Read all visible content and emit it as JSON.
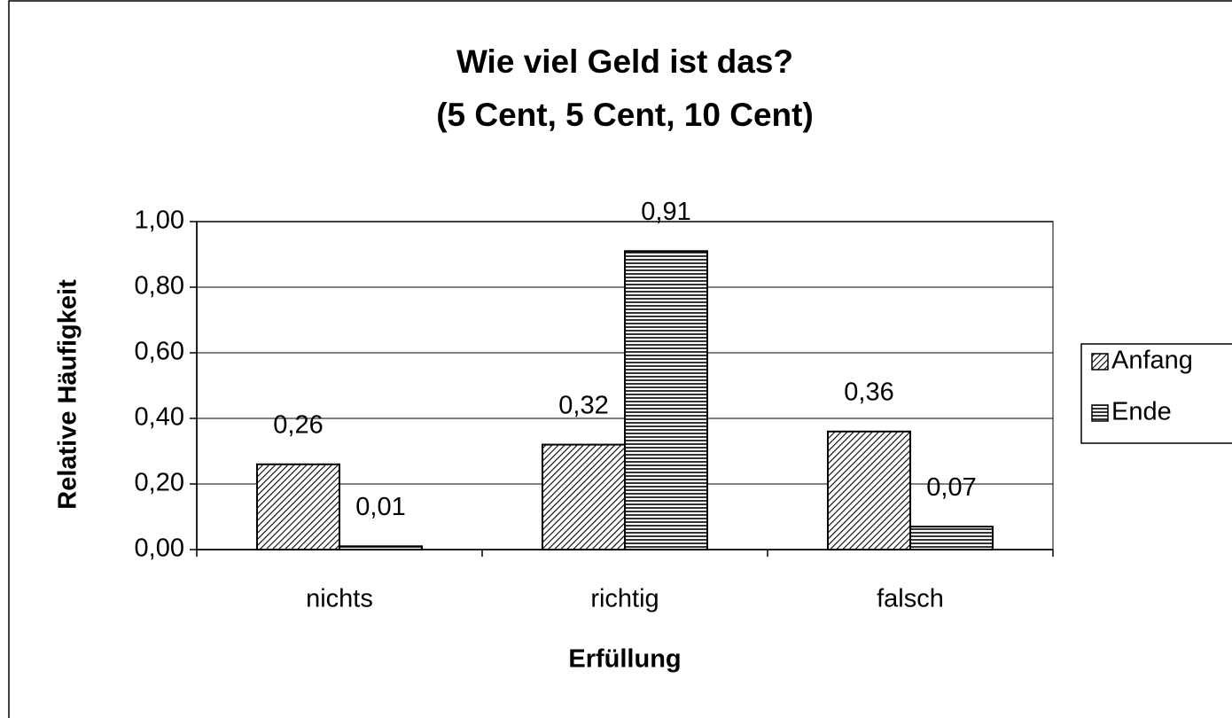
{
  "chart_data": {
    "type": "bar",
    "title": [
      "Wie viel Geld ist das?",
      "(5 Cent, 5 Cent, 10 Cent)"
    ],
    "x_label": "Erfüllung",
    "y_label": "Relative Häufigkeit",
    "categories": [
      "nichts",
      "richtig",
      "falsch"
    ],
    "series": [
      {
        "name": "Anfang",
        "pattern": "diagonal",
        "values": [
          0.26,
          0.32,
          0.36
        ],
        "value_labels": [
          "0,26",
          "0,32",
          "0,36"
        ]
      },
      {
        "name": "Ende",
        "pattern": "horizontal",
        "values": [
          0.01,
          0.91,
          0.07
        ],
        "value_labels": [
          "0,01",
          "0,91",
          "0,07"
        ]
      }
    ],
    "ylim": [
      0,
      1
    ],
    "yticks": [
      {
        "value": 0,
        "label": "0,00"
      },
      {
        "value": 0.2,
        "label": "0,20"
      },
      {
        "value": 0.4,
        "label": "0,40"
      },
      {
        "value": 0.6,
        "label": "0,60"
      },
      {
        "value": 0.8,
        "label": "0,80"
      },
      {
        "value": 1,
        "label": "1,00"
      }
    ],
    "grid": true,
    "legend": "right"
  }
}
